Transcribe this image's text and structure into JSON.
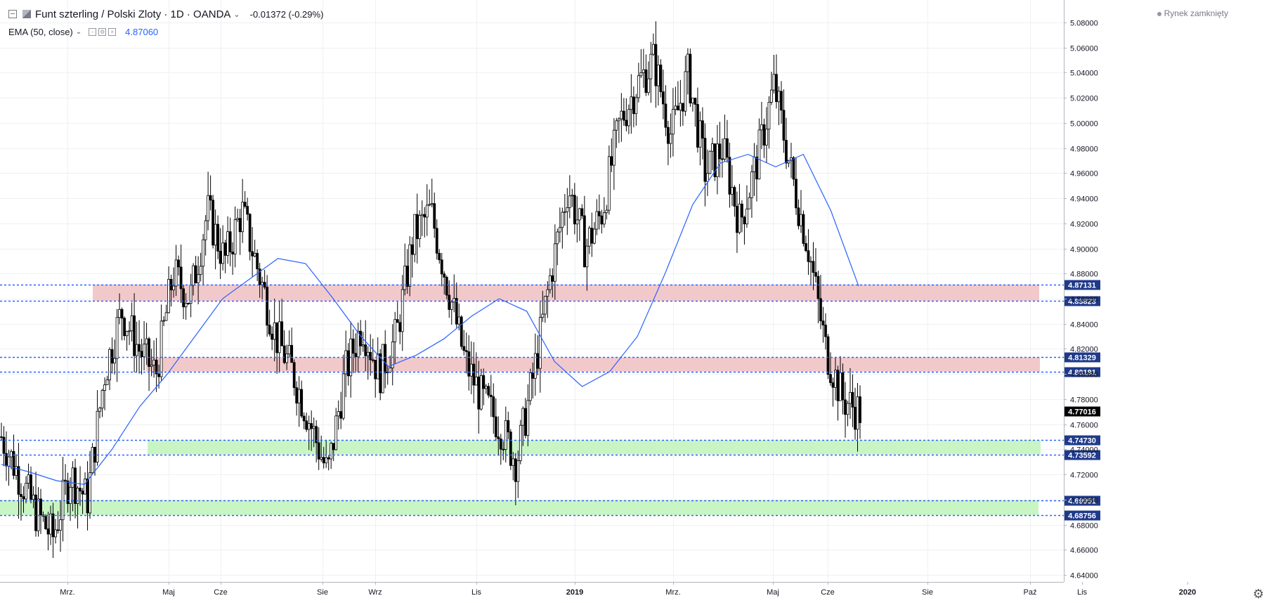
{
  "header": {
    "title": "Funt szterling / Polski Zloty · 1D · OANDA",
    "change": "-0.01372 (-0.29%)"
  },
  "indicator": {
    "label": "EMA (50, close)",
    "value": "4.87060"
  },
  "market_status": "Rynek zamknięty",
  "chart_data": {
    "type": "candlestick",
    "symbol": "GBPPLN",
    "price_axis": {
      "min": 4.64,
      "max": 5.08,
      "ticks": [
        "5.08000",
        "5.06000",
        "5.04000",
        "5.02000",
        "5.00000",
        "4.98000",
        "4.96000",
        "4.94000",
        "4.92000",
        "4.90000",
        "4.88000",
        "4.86000",
        "4.84000",
        "4.82000",
        "4.80000",
        "4.78000",
        "4.76000",
        "4.74000",
        "4.72000",
        "4.70000",
        "4.68000",
        "4.66000",
        "4.64000"
      ]
    },
    "time_axis": {
      "labels": [
        {
          "label": "Mrz.",
          "bold": false
        },
        {
          "label": "Maj",
          "bold": false
        },
        {
          "label": "Cze",
          "bold": false
        },
        {
          "label": "Sie",
          "bold": false
        },
        {
          "label": "Wrz",
          "bold": false
        },
        {
          "label": "Lis",
          "bold": false
        },
        {
          "label": "2019",
          "bold": true
        },
        {
          "label": "Mrz.",
          "bold": false
        },
        {
          "label": "Maj",
          "bold": false
        },
        {
          "label": "Cze",
          "bold": false
        },
        {
          "label": "Sie",
          "bold": false
        },
        {
          "label": "Paź",
          "bold": false
        },
        {
          "label": "Lis",
          "bold": false
        },
        {
          "label": "2020",
          "bold": true
        }
      ]
    },
    "horizontal_levels": [
      {
        "value": 4.87131,
        "label": "4.87131"
      },
      {
        "value": 4.85823,
        "label": "4.85823"
      },
      {
        "value": 4.81329,
        "label": "4.81329"
      },
      {
        "value": 4.80191,
        "label": "4.80191"
      },
      {
        "value": 4.7473,
        "label": "4.74730"
      },
      {
        "value": 4.73592,
        "label": "4.73592"
      },
      {
        "value": 4.69951,
        "label": "4.69951"
      },
      {
        "value": 4.68756,
        "label": "4.68756"
      }
    ],
    "zones": [
      {
        "from": 4.85823,
        "to": 4.87131,
        "color": "#f2c9cb"
      },
      {
        "from": 4.80191,
        "to": 4.81329,
        "color": "#f2c9cb"
      },
      {
        "from": 4.73592,
        "to": 4.7473,
        "color": "#c9f5c4"
      },
      {
        "from": 4.68756,
        "to": 4.69951,
        "color": "#c9f5c4"
      }
    ],
    "last_price": {
      "value": 4.77016,
      "label": "4.77016"
    },
    "ema_anchors": [
      4.728,
      4.722,
      4.715,
      4.712,
      4.74,
      4.774,
      4.8,
      4.83,
      4.86,
      4.876,
      4.892,
      4.888,
      4.86,
      4.83,
      4.806,
      4.815,
      4.828,
      4.846,
      4.86,
      4.85,
      4.81,
      4.79,
      4.802,
      4.83,
      4.88,
      4.935,
      4.968,
      4.975,
      4.965,
      4.975,
      4.93,
      4.87
    ],
    "price_anchors": [
      4.75,
      4.72,
      4.69,
      4.67,
      4.72,
      4.7,
      4.8,
      4.85,
      4.82,
      4.8,
      4.88,
      4.86,
      4.93,
      4.89,
      4.93,
      4.88,
      4.83,
      4.8,
      4.76,
      4.72,
      4.8,
      4.84,
      4.8,
      4.83,
      4.91,
      4.93,
      4.87,
      4.81,
      4.78,
      4.76,
      4.73,
      4.8,
      4.88,
      4.95,
      4.9,
      4.93,
      5.0,
      5.03,
      5.05,
      4.99,
      5.04,
      4.96,
      4.98,
      4.92,
      4.97,
      5.03,
      4.96,
      4.9,
      4.82,
      4.78,
      4.77
    ],
    "candles_count": 350,
    "colors": {
      "up": "#ffffff",
      "down": "#000000",
      "wick": "#000000",
      "ema": "#2962ff",
      "level": "#2962ff",
      "label_bg": "#1f3a8a",
      "last_bg": "#000000"
    }
  }
}
